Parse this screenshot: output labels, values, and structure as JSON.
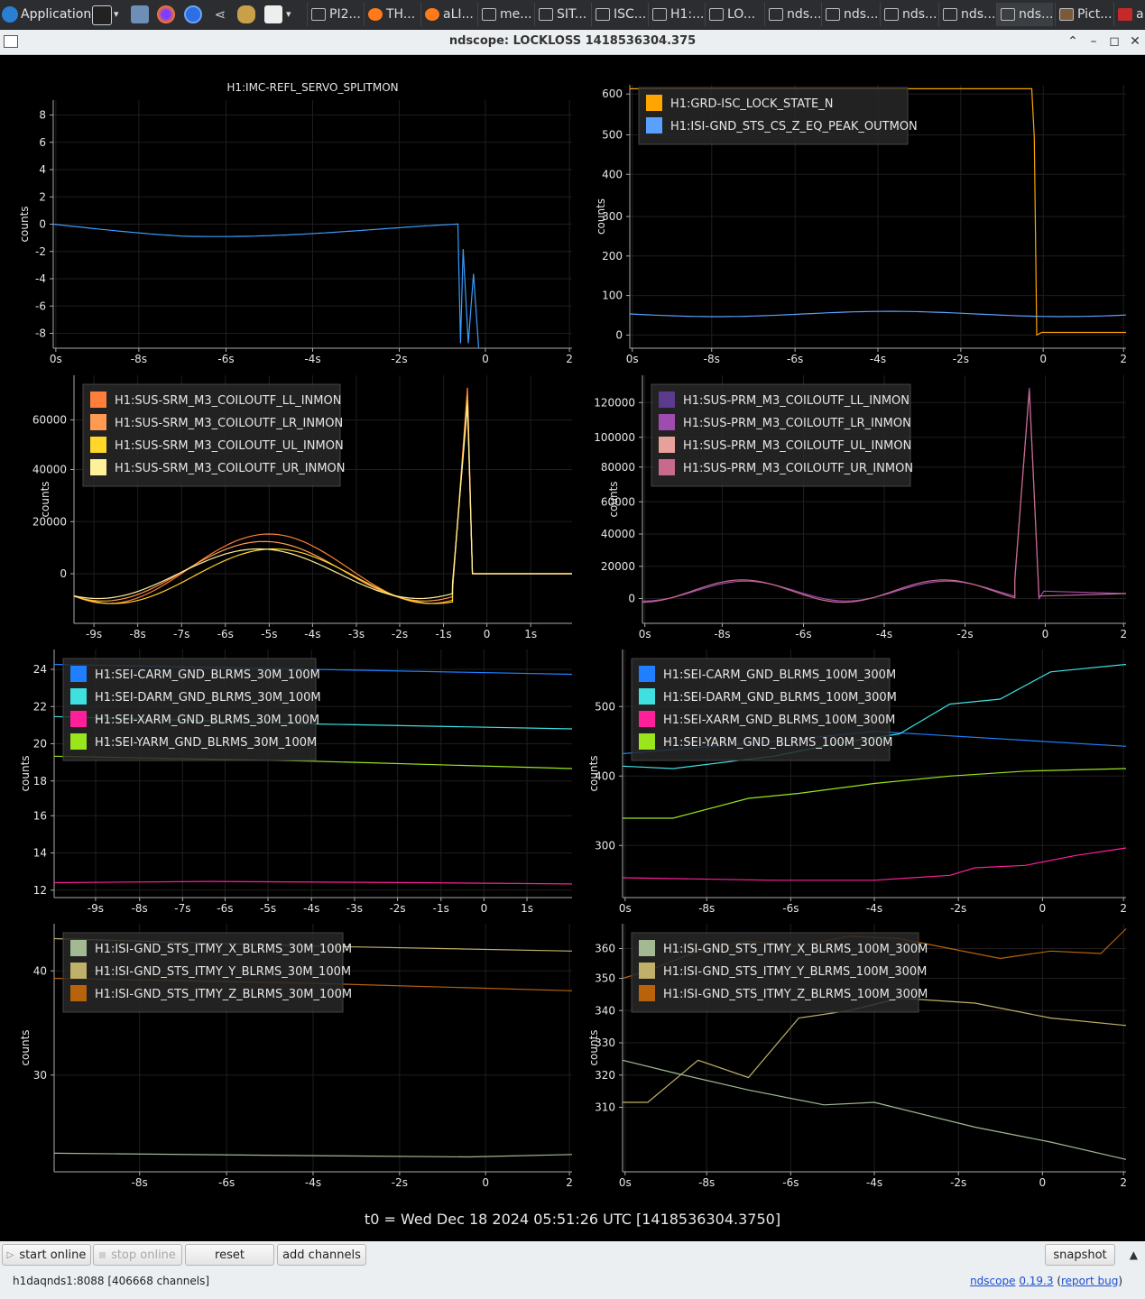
{
  "taskbar": {
    "applications_label": "Applications",
    "tasks": [
      "PI2...",
      "TH...",
      "aLI...",
      "me...",
      "SIT...",
      "ISC...",
      "H1:...",
      "LO...",
      "nds...",
      "nds...",
      "nds...",
      "nds...",
      "nds...",
      "Pict...",
      "a"
    ]
  },
  "window": {
    "title": "ndscope: LOCKLOSS 1418536304.375"
  },
  "plots": [
    {
      "title": "H1:IMC-REFL_SERVO_SPLITMON",
      "ylabel": "counts",
      "yticks": [
        "8",
        "6",
        "4",
        "2",
        "0",
        "-2",
        "-4",
        "-6",
        "-8"
      ],
      "xticks": [
        "0s",
        "-8s",
        "-6s",
        "-4s",
        "-2s",
        "0",
        "2"
      ],
      "legend": []
    },
    {
      "title": "",
      "ylabel": "counts",
      "yticks": [
        "600",
        "500",
        "400",
        "300",
        "200",
        "100",
        "0"
      ],
      "xticks": [
        "0s",
        "-8s",
        "-6s",
        "-4s",
        "-2s",
        "0",
        "2"
      ],
      "legend": [
        {
          "label": "H1:GRD-ISC_LOCK_STATE_N",
          "color": "#ffa500"
        },
        {
          "label": "H1:ISI-GND_STS_CS_Z_EQ_PEAK_OUTMON",
          "color": "#5aa0ff"
        }
      ]
    },
    {
      "title": "",
      "ylabel": "counts",
      "yticks": [
        "60000",
        "40000",
        "20000",
        "0"
      ],
      "xticks": [
        "-9s",
        "-8s",
        "-7s",
        "-6s",
        "-5s",
        "-4s",
        "-3s",
        "-2s",
        "-1s",
        "0",
        "1s"
      ],
      "legend": [
        {
          "label": "H1:SUS-SRM_M3_COILOUTF_LL_INMON",
          "color": "#ff7f3a"
        },
        {
          "label": "H1:SUS-SRM_M3_COILOUTF_LR_INMON",
          "color": "#ff9a52"
        },
        {
          "label": "H1:SUS-SRM_M3_COILOUTF_UL_INMON",
          "color": "#ffd629"
        },
        {
          "label": "H1:SUS-SRM_M3_COILOUTF_UR_INMON",
          "color": "#fff09a"
        }
      ]
    },
    {
      "title": "",
      "ylabel": "counts",
      "yticks": [
        "120000",
        "100000",
        "80000",
        "60000",
        "40000",
        "20000",
        "0"
      ],
      "xticks": [
        "0s",
        "-8s",
        "-6s",
        "-4s",
        "-2s",
        "0",
        "2"
      ],
      "legend": [
        {
          "label": "H1:SUS-PRM_M3_COILOUTF_LL_INMON",
          "color": "#5c3a8e"
        },
        {
          "label": "H1:SUS-PRM_M3_COILOUTF_LR_INMON",
          "color": "#a04bb0"
        },
        {
          "label": "H1:SUS-PRM_M3_COILOUTF_UL_INMON",
          "color": "#e6a29a"
        },
        {
          "label": "H1:SUS-PRM_M3_COILOUTF_UR_INMON",
          "color": "#c76a8c"
        }
      ]
    },
    {
      "title": "",
      "ylabel": "counts",
      "yticks": [
        "24",
        "22",
        "20",
        "18",
        "16",
        "14",
        "12"
      ],
      "xticks": [
        "-9s",
        "-8s",
        "-7s",
        "-6s",
        "-5s",
        "-4s",
        "-3s",
        "-2s",
        "-1s",
        "0",
        "1s"
      ],
      "legend": [
        {
          "label": "H1:SEI-CARM_GND_BLRMS_30M_100M",
          "color": "#1f7fff"
        },
        {
          "label": "H1:SEI-DARM_GND_BLRMS_30M_100M",
          "color": "#3ee0e0"
        },
        {
          "label": "H1:SEI-XARM_GND_BLRMS_30M_100M",
          "color": "#ff1f9a"
        },
        {
          "label": "H1:SEI-YARM_GND_BLRMS_30M_100M",
          "color": "#9ae61c"
        }
      ]
    },
    {
      "title": "",
      "ylabel": "counts",
      "yticks": [
        "500",
        "400",
        "300"
      ],
      "xticks": [
        "0s",
        "-8s",
        "-6s",
        "-4s",
        "-2s",
        "0",
        "2"
      ],
      "legend": [
        {
          "label": "H1:SEI-CARM_GND_BLRMS_100M_300M",
          "color": "#1f7fff"
        },
        {
          "label": "H1:SEI-DARM_GND_BLRMS_100M_300M",
          "color": "#3ee0e0"
        },
        {
          "label": "H1:SEI-XARM_GND_BLRMS_100M_300M",
          "color": "#ff1f9a"
        },
        {
          "label": "H1:SEI-YARM_GND_BLRMS_100M_300M",
          "color": "#9ae61c"
        }
      ]
    },
    {
      "title": "",
      "ylabel": "counts",
      "yticks": [
        "40",
        "30"
      ],
      "xticks": [
        "-8s",
        "-6s",
        "-4s",
        "-2s",
        "0",
        "2"
      ],
      "legend": [
        {
          "label": "H1:ISI-GND_STS_ITMY_X_BLRMS_30M_100M",
          "color": "#a2b994"
        },
        {
          "label": "H1:ISI-GND_STS_ITMY_Y_BLRMS_30M_100M",
          "color": "#bfb06a"
        },
        {
          "label": "H1:ISI-GND_STS_ITMY_Z_BLRMS_30M_100M",
          "color": "#b8620c"
        }
      ]
    },
    {
      "title": "",
      "ylabel": "counts",
      "yticks": [
        "360",
        "350",
        "340",
        "330",
        "320",
        "310"
      ],
      "xticks": [
        "0s",
        "-8s",
        "-6s",
        "-4s",
        "-2s",
        "0",
        "2"
      ],
      "legend": [
        {
          "label": "H1:ISI-GND_STS_ITMY_X_BLRMS_100M_300M",
          "color": "#a2b994"
        },
        {
          "label": "H1:ISI-GND_STS_ITMY_Y_BLRMS_100M_300M",
          "color": "#bfb06a"
        },
        {
          "label": "H1:ISI-GND_STS_ITMY_Z_BLRMS_100M_300M",
          "color": "#b8620c"
        }
      ]
    }
  ],
  "t0_label": "t0 = Wed Dec 18 2024 05:51:26 UTC [1418536304.3750]",
  "controls": {
    "start_online": "start online",
    "stop_online": "stop online",
    "reset": "reset",
    "add_channels": "add channels",
    "snapshot": "snapshot"
  },
  "status": {
    "server": "h1daqnds1:8088  [406668 channels]",
    "app_name": "ndscope",
    "version": "0.19.3",
    "report_bug": "report bug"
  }
}
